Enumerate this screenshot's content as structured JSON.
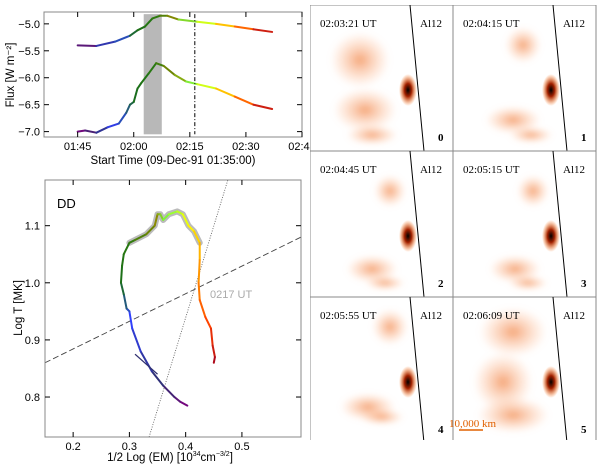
{
  "chart_data": [
    {
      "type": "line",
      "xlabel": "Start Time (09-Dec-91 01:35:00)",
      "ylabel": "Flux [W m⁻²]",
      "xticks": [
        "01:45",
        "02:00",
        "02:15",
        "02:30",
        "02:45"
      ],
      "yticks": [
        "-5.0",
        "-5.5",
        "-6.0",
        "-6.5",
        "-7.0"
      ],
      "xlim": [
        "01:36",
        "02:45"
      ],
      "ylim": [
        -7.1,
        -4.78
      ],
      "shaded_interval": [
        "02:02:40",
        "02:07:30"
      ],
      "vertical_line": "02:16:20",
      "color_scale_by_time": [
        "#800080",
        "#303070",
        "#3040ff",
        "#1a6e1a",
        "#2a7a10",
        "#8a8a00",
        "#80ff40",
        "#ffff00",
        "#ff9900",
        "#ff4000",
        "#a00020"
      ],
      "series": [
        {
          "x": [
            "01:45",
            "01:50",
            "01:55",
            "01:59",
            "02:01",
            "02:03",
            "02:05",
            "02:07",
            "02:09",
            "02:12",
            "02:17",
            "02:22",
            "02:27",
            "02:32",
            "02:37"
          ],
          "y": [
            -5.4,
            -5.41,
            -5.33,
            -5.22,
            -5.12,
            -5.05,
            -4.9,
            -4.85,
            -4.85,
            -4.92,
            -4.96,
            -5.0,
            -5.05,
            -5.1,
            -5.15
          ]
        },
        {
          "x": [
            "01:45",
            "01:47",
            "01:50",
            "01:53",
            "01:56",
            "01:58",
            "01:59",
            "02:00",
            "02:01",
            "02:02",
            "02:04",
            "02:06",
            "02:08",
            "02:11",
            "02:14",
            "02:17",
            "02:22",
            "02:27",
            "02:32",
            "02:37"
          ],
          "y": [
            -7.0,
            -6.98,
            -7.02,
            -6.92,
            -6.85,
            -6.65,
            -6.5,
            -6.45,
            -6.2,
            -6.1,
            -5.92,
            -5.73,
            -5.78,
            -5.95,
            -6.07,
            -6.12,
            -6.2,
            -6.35,
            -6.5,
            -6.58
          ]
        }
      ]
    },
    {
      "type": "line",
      "title": "DD",
      "xlabel": "1/2 Log (EM) [10",
      "xlabel_sup1": "34",
      "xlabel_mid": "cm",
      "xlabel_sup2": "−3/2",
      "xlabel_end": "]",
      "ylabel": "Log T [MK]",
      "xticks": [
        "0.2",
        "0.3",
        "0.4",
        "0.5"
      ],
      "yticks": [
        "0.8",
        "0.9",
        "1.0",
        "1.1"
      ],
      "xlim": [
        0.15,
        0.605
      ],
      "ylim": [
        0.73,
        1.18
      ],
      "annotation": "0217 UT",
      "trajectory": {
        "x": [
          0.403,
          0.39,
          0.38,
          0.36,
          0.34,
          0.32,
          0.305,
          0.3,
          0.295,
          0.29,
          0.285,
          0.287,
          0.29,
          0.3,
          0.31,
          0.33,
          0.345,
          0.35,
          0.355,
          0.36,
          0.37,
          0.385,
          0.395,
          0.405,
          0.415,
          0.425,
          0.425,
          0.423,
          0.425,
          0.435,
          0.445,
          0.448,
          0.452,
          0.45
        ],
        "y": [
          0.785,
          0.792,
          0.8,
          0.82,
          0.845,
          0.88,
          0.92,
          0.95,
          0.955,
          0.98,
          1.0,
          1.03,
          1.05,
          1.07,
          1.075,
          1.085,
          1.1,
          1.12,
          1.12,
          1.11,
          1.12,
          1.125,
          1.12,
          1.1,
          1.09,
          1.07,
          1.04,
          1.0,
          0.97,
          0.94,
          0.92,
          0.89,
          0.87,
          0.86
        ]
      },
      "branch": {
        "x": [
          0.31,
          0.35
        ],
        "y": [
          0.875,
          0.84
        ]
      },
      "dashed_line": {
        "x": [
          0.15,
          0.605
        ],
        "y": [
          0.86,
          1.08
        ]
      },
      "dotted_line": {
        "x": [
          0.335,
          0.475
        ],
        "y": [
          0.73,
          1.18
        ]
      }
    }
  ],
  "images": {
    "scale_bar": "10,000 km",
    "panels": [
      {
        "time": "02:03:21 UT",
        "filter": "Al12",
        "index": "0"
      },
      {
        "time": "02:04:15 UT",
        "filter": "Al12",
        "index": "1"
      },
      {
        "time": "02:04:45 UT",
        "filter": "Al12",
        "index": "2"
      },
      {
        "time": "02:05:15 UT",
        "filter": "Al12",
        "index": "3"
      },
      {
        "time": "02:05:55 UT",
        "filter": "Al12",
        "index": "4"
      },
      {
        "time": "02:06:09 UT",
        "filter": "Al12",
        "index": "5"
      }
    ]
  }
}
